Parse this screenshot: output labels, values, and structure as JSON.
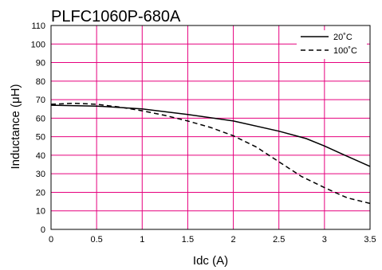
{
  "chart_data": {
    "type": "line",
    "title": "PLFC1060P-680A",
    "xlabel": "Idc (A)",
    "ylabel": "Inductance (μH)",
    "xlim": [
      0,
      3.5
    ],
    "ylim": [
      0,
      110
    ],
    "x_ticks": [
      "0",
      "0.5",
      "1",
      "1.5",
      "2",
      "2.5",
      "3",
      "3.5"
    ],
    "y_ticks": [
      "0",
      "10",
      "20",
      "30",
      "40",
      "50",
      "60",
      "70",
      "80",
      "90",
      "100",
      "110"
    ],
    "grid": true,
    "grid_color": "#e6007e",
    "legend_position": "top-right",
    "series": [
      {
        "name": "20˚C",
        "style": "solid",
        "color": "#000000",
        "x": [
          0,
          0.5,
          1.0,
          1.5,
          2.0,
          2.5,
          2.8,
          3.0,
          3.2,
          3.5
        ],
        "y": [
          67,
          66.5,
          65,
          62,
          58.5,
          53,
          49,
          45,
          40.5,
          34
        ]
      },
      {
        "name": "100˚C",
        "style": "dashed",
        "color": "#000000",
        "x": [
          0,
          0.25,
          0.5,
          0.75,
          1.0,
          1.25,
          1.5,
          1.75,
          2.0,
          2.25,
          2.5,
          2.75,
          3.0,
          3.25,
          3.5
        ],
        "y": [
          67.5,
          68,
          67.5,
          66,
          64,
          61.5,
          58.5,
          55,
          50.5,
          44.5,
          36.5,
          28.5,
          22.5,
          17,
          14
        ]
      }
    ]
  }
}
